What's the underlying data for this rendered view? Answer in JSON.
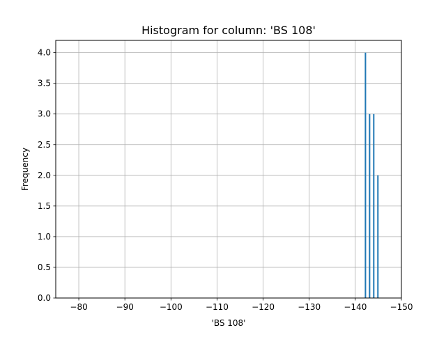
{
  "chart_data": {
    "type": "bar",
    "title": "Histogram for column: 'BS 108'",
    "xlabel": "'BS 108'",
    "ylabel": "Frequency",
    "xlim": [
      -75,
      -150
    ],
    "ylim": [
      0,
      4.2
    ],
    "x_ticks": [
      -80,
      -90,
      -100,
      -110,
      -120,
      -130,
      -140,
      -150
    ],
    "x_tick_labels": [
      "−80",
      "−90",
      "−100",
      "−110",
      "−120",
      "−130",
      "−140",
      "−150"
    ],
    "y_ticks": [
      0,
      0.5,
      1,
      1.5,
      2,
      2.5,
      3,
      3.5,
      4
    ],
    "y_tick_labels": [
      "0.0",
      "0.5",
      "1.0",
      "1.5",
      "2.0",
      "2.5",
      "3.0",
      "3.5",
      "4.0"
    ],
    "grid": true,
    "bar_color": "#1f77b4",
    "bars": [
      {
        "x": -142.2,
        "value": 4
      },
      {
        "x": -143.1,
        "value": 3
      },
      {
        "x": -144.0,
        "value": 3
      },
      {
        "x": -144.9,
        "value": 2
      }
    ]
  }
}
